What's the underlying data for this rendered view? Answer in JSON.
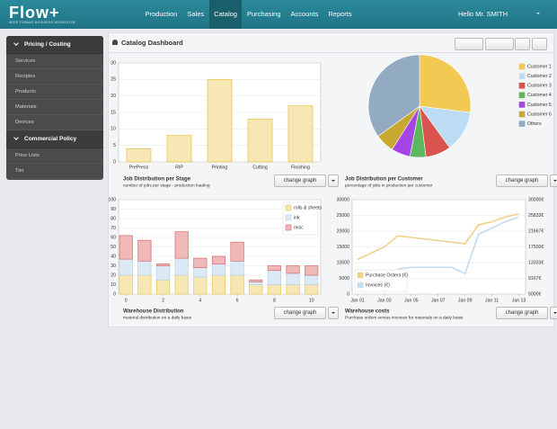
{
  "nav": {
    "logo": "Flow+",
    "tagline": "WIDE FORMAT BUSINESS WORKFLOW",
    "menu": [
      "Production",
      "Sales",
      "Catalog",
      "Purchasing",
      "Accounts",
      "Reports"
    ],
    "greeting": "Hello Mr. SMITH"
  },
  "sidebar": [
    {
      "title": "Pricing / Costing",
      "items": [
        "Services",
        "Recipies",
        "Products",
        "Materials",
        "Devices"
      ]
    },
    {
      "title": "Commercial Policy",
      "items": [
        "Price Lists",
        "Tier"
      ]
    }
  ],
  "dashboard": {
    "title": "Catalog Dashboard"
  },
  "buttons": [
    "change graph",
    "change graph",
    "change graph",
    "change graph"
  ],
  "chart_data": [
    {
      "type": "bar",
      "title": "Job Distribution per Stage",
      "subtitle": "number of jobs per stage - production loading",
      "categories": [
        "PrePress",
        "RIP",
        "Printing",
        "Cutting",
        "Finishing"
      ],
      "values": [
        4,
        8,
        25,
        13,
        17
      ],
      "color": "#f6e7b5",
      "edge_color": "#e8c651",
      "ylim": [
        0,
        30
      ],
      "yticks": [
        0,
        5,
        10,
        15,
        20,
        25,
        30
      ],
      "grid": true
    },
    {
      "type": "pie",
      "title": "Job Distribution per Customer",
      "subtitle": "percentage of jobs in production per customer",
      "categories": [
        "Customer 1",
        "Customer 2",
        "Customer 3",
        "Customer 4",
        "Customer 5",
        "Customer 6",
        "Others"
      ],
      "values": [
        27,
        13,
        8,
        5,
        6,
        6,
        35
      ],
      "colors": [
        "#f1c953",
        "#bcdcf3",
        "#d9534f",
        "#5cb85c",
        "#a445e6",
        "#c9a832",
        "#92aac2"
      ],
      "legend": "right"
    },
    {
      "type": "stacked_bar",
      "title": "Warehouse Distribution",
      "subtitle": "material distribution on a daily basis",
      "x": [
        0,
        1,
        2,
        3,
        4,
        5,
        6,
        7,
        8,
        9,
        10
      ],
      "xlim": [
        -0.4,
        10.5
      ],
      "xticks": [
        0,
        2,
        4,
        6,
        8,
        10
      ],
      "ylim": [
        0,
        100
      ],
      "yticks": [
        0,
        10,
        20,
        30,
        40,
        50,
        60,
        70,
        80,
        90,
        100
      ],
      "grid": true,
      "legend": "top-right",
      "series": [
        {
          "name": "rolls & sheets",
          "color": "#f6e7b5",
          "edge_color": "#e8c651",
          "values": [
            20,
            20,
            15,
            20,
            18,
            20,
            20,
            10,
            10,
            10,
            10
          ]
        },
        {
          "name": "ink",
          "color": "#dceaf6",
          "edge_color": "#b5d2ea",
          "values": [
            17,
            15,
            15,
            18,
            10,
            12,
            15,
            3,
            15,
            12,
            10
          ]
        },
        {
          "name": "misc",
          "color": "#efb9b9",
          "edge_color": "#d46a6a",
          "values": [
            25,
            22,
            2,
            28,
            10,
            8,
            20,
            2,
            5,
            8,
            10
          ]
        }
      ]
    },
    {
      "type": "line",
      "title": "Warehouse costs",
      "subtitle": "Purchase orders versus invoices for materials on a daily basis",
      "x": [
        1,
        2,
        3,
        4,
        5,
        6,
        7,
        8,
        9,
        10,
        11,
        12,
        13
      ],
      "xlim": [
        0.6,
        13.5
      ],
      "xticks": [
        {
          "value": 1,
          "label": "Jan 01"
        },
        {
          "value": 3,
          "label": "Jan 03"
        },
        {
          "value": 5,
          "label": "Jan 05"
        },
        {
          "value": 7,
          "label": "Jan 07"
        },
        {
          "value": 9,
          "label": "Jan 09"
        },
        {
          "value": 11,
          "label": "Jan 11"
        },
        {
          "value": 13,
          "label": "Jan 13"
        }
      ],
      "ylim": [
        0,
        30000
      ],
      "yticks": [
        0,
        5000,
        10000,
        15000,
        20000,
        25000,
        30000
      ],
      "y2lim": [
        5000,
        30000
      ],
      "y2ticks": [
        {
          "value": 5000,
          "label": "5000€"
        },
        {
          "value": 9167,
          "label": "9167€"
        },
        {
          "value": 13333,
          "label": "13333€"
        },
        {
          "value": 17500,
          "label": "17500€"
        },
        {
          "value": 21667,
          "label": "21667€"
        },
        {
          "value": 25833,
          "label": "25833€"
        },
        {
          "value": 30000,
          "label": "30000€"
        }
      ],
      "grid": true,
      "legend": "bottom-left",
      "series": [
        {
          "name": "Purchase Orders (€)",
          "color": "#efd18a",
          "values": [
            11000,
            13000,
            15000,
            18500,
            18000,
            17500,
            17000,
            16500,
            16000,
            22000,
            23000,
            24500,
            25500
          ]
        },
        {
          "name": "Invoices (€)",
          "color": "#c3dcf0",
          "values": [
            null,
            null,
            null,
            8000,
            8500,
            8500,
            8500,
            8500,
            6500,
            19000,
            21000,
            23000,
            24500
          ]
        }
      ]
    }
  ]
}
